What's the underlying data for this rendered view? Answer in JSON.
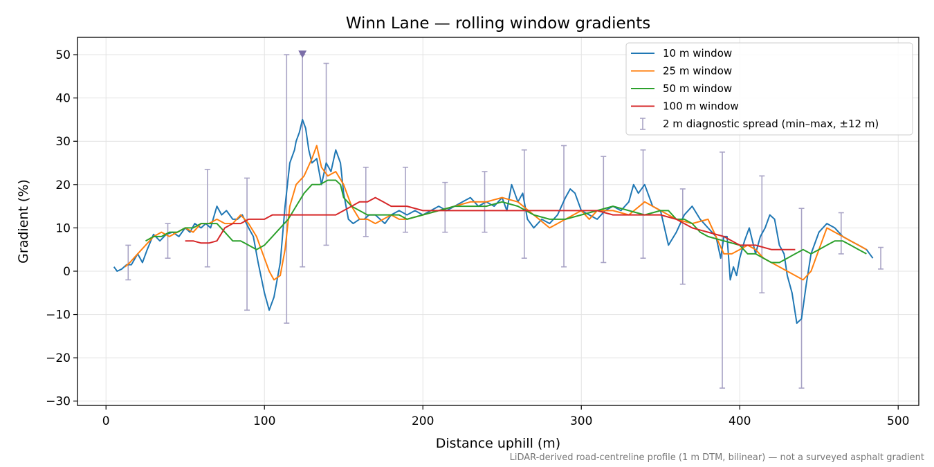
{
  "chart_data": {
    "type": "line",
    "title": "Winn Lane — rolling window gradients",
    "xlabel": "Distance uphill (m)",
    "ylabel": "Gradient (%)",
    "xlim": [
      -18,
      513
    ],
    "ylim": [
      -31,
      54
    ],
    "xticks": [
      0,
      100,
      200,
      300,
      400,
      500
    ],
    "yticks": [
      -30,
      -20,
      -10,
      0,
      10,
      20,
      30,
      40,
      50
    ],
    "grid": true,
    "legend_position": "top-right",
    "footnote": "LiDAR-derived road-centreline profile (1 m DTM, bilinear) — not a surveyed asphalt gradient",
    "series": [
      {
        "name": "10 m window",
        "color": "#1f77b4",
        "x": [
          5,
          7,
          10,
          13,
          16,
          20,
          23,
          26,
          30,
          34,
          38,
          42,
          46,
          50,
          53,
          56,
          60,
          63,
          66,
          70,
          73,
          76,
          80,
          83,
          86,
          90,
          93,
          96,
          100,
          103,
          106,
          110,
          113,
          116,
          119,
          120,
          122,
          124,
          126,
          128,
          130,
          133,
          136,
          139,
          142,
          145,
          148,
          150,
          153,
          156,
          160,
          163,
          166,
          170,
          173,
          176,
          180,
          185,
          190,
          195,
          200,
          205,
          210,
          215,
          220,
          225,
          230,
          235,
          240,
          245,
          250,
          253,
          256,
          260,
          263,
          266,
          270,
          275,
          280,
          285,
          290,
          293,
          296,
          300,
          305,
          310,
          315,
          320,
          325,
          330,
          333,
          336,
          340,
          345,
          350,
          355,
          360,
          365,
          370,
          375,
          380,
          385,
          388,
          390,
          392,
          394,
          396,
          398,
          400,
          403,
          406,
          410,
          413,
          416,
          419,
          422,
          425,
          428,
          430,
          433,
          436,
          439,
          442,
          445,
          450,
          455,
          460,
          465,
          470,
          475,
          480,
          484
        ],
        "y": [
          1,
          0,
          0.5,
          1.5,
          1.5,
          4,
          2,
          5,
          8.5,
          7,
          8.5,
          9,
          8,
          10,
          9,
          11,
          10,
          11,
          10,
          15,
          13,
          14,
          12,
          12,
          13,
          10,
          8,
          2,
          -5,
          -9,
          -6,
          2,
          15,
          25,
          28,
          30,
          32,
          35,
          33,
          28,
          25,
          26,
          20,
          25,
          23,
          28,
          25,
          18,
          12,
          11,
          12,
          12,
          13,
          13,
          12,
          11,
          13,
          14,
          13,
          14,
          13,
          14,
          15,
          14,
          15,
          16,
          17,
          15,
          16,
          15,
          17,
          14,
          20,
          16,
          18,
          12,
          10,
          12,
          11,
          13,
          17,
          19,
          18,
          14,
          13,
          12,
          14,
          15,
          14,
          16,
          20,
          18,
          20,
          15,
          14,
          6,
          9,
          13,
          15,
          12,
          10,
          8,
          3,
          8,
          8,
          -2,
          1,
          -1,
          3,
          7,
          10,
          4,
          8,
          10,
          13,
          12,
          6,
          4,
          -1,
          -5,
          -12,
          -11,
          -3,
          4,
          9,
          11,
          10,
          8,
          7,
          6,
          5,
          3
        ]
      },
      {
        "name": "25 m window",
        "color": "#ff7f0e",
        "x": [
          12,
          15,
          20,
          25,
          30,
          35,
          40,
          45,
          50,
          55,
          60,
          65,
          70,
          75,
          80,
          85,
          90,
          95,
          100,
          103,
          106,
          110,
          113,
          116,
          120,
          125,
          130,
          133,
          136,
          140,
          145,
          150,
          155,
          160,
          165,
          170,
          175,
          180,
          185,
          190,
          200,
          210,
          220,
          230,
          240,
          250,
          260,
          270,
          280,
          290,
          300,
          305,
          310,
          320,
          330,
          340,
          350,
          360,
          370,
          380,
          385,
          390,
          395,
          400,
          405,
          410,
          415,
          420,
          425,
          430,
          435,
          440,
          445,
          450,
          455,
          460,
          465,
          470,
          475,
          480
        ],
        "y": [
          1,
          2,
          4,
          6,
          8,
          9,
          8,
          9,
          10,
          9,
          11,
          11,
          12,
          11,
          11,
          13,
          11,
          8,
          3,
          0,
          -2,
          -1,
          5,
          15,
          20,
          22,
          26,
          29,
          24,
          22,
          23,
          20,
          15,
          12,
          12,
          11,
          12,
          13,
          12,
          12,
          13,
          14,
          15,
          16,
          16,
          17,
          16,
          13,
          10,
          12,
          14,
          12,
          14,
          14,
          13,
          16,
          14,
          12,
          11,
          12,
          8,
          4,
          4,
          5,
          6,
          5,
          3,
          2,
          1,
          0,
          -1,
          -2,
          0,
          5,
          10,
          9,
          8,
          7,
          6,
          5
        ]
      },
      {
        "name": "50 m window",
        "color": "#2ca02c",
        "x": [
          25,
          30,
          35,
          40,
          45,
          50,
          55,
          60,
          65,
          70,
          75,
          80,
          85,
          90,
          95,
          100,
          105,
          110,
          115,
          120,
          125,
          130,
          135,
          140,
          145,
          148,
          150,
          155,
          160,
          165,
          170,
          175,
          180,
          185,
          190,
          200,
          210,
          220,
          230,
          240,
          250,
          260,
          270,
          280,
          290,
          300,
          310,
          320,
          330,
          340,
          350,
          355,
          360,
          365,
          370,
          375,
          380,
          390,
          400,
          405,
          410,
          415,
          420,
          425,
          430,
          435,
          440,
          445,
          450,
          455,
          460,
          465,
          470,
          475,
          480
        ],
        "y": [
          7,
          8,
          8,
          9,
          9,
          10,
          10,
          11,
          11,
          11,
          9,
          7,
          7,
          6,
          5,
          6,
          8,
          10,
          12,
          15,
          18,
          20,
          20,
          21,
          21,
          20,
          17,
          15,
          14,
          13,
          13,
          13,
          13,
          13,
          12,
          13,
          14,
          15,
          15,
          15,
          16,
          15,
          13,
          12,
          12,
          13,
          14,
          15,
          14,
          13,
          14,
          14,
          12,
          12,
          11,
          9,
          8,
          7,
          6,
          4,
          4,
          3,
          2,
          2,
          3,
          4,
          5,
          4,
          5,
          6,
          7,
          7,
          6,
          5,
          4
        ]
      },
      {
        "name": "100 m window",
        "color": "#d62728",
        "x": [
          50,
          55,
          60,
          65,
          70,
          75,
          80,
          85,
          90,
          95,
          100,
          105,
          110,
          115,
          120,
          125,
          130,
          135,
          140,
          145,
          150,
          155,
          160,
          165,
          170,
          175,
          180,
          190,
          200,
          210,
          220,
          230,
          240,
          250,
          260,
          270,
          280,
          290,
          300,
          310,
          320,
          330,
          340,
          350,
          360,
          370,
          380,
          390,
          400,
          410,
          420,
          430,
          435
        ],
        "y": [
          7,
          7,
          6.5,
          6.5,
          7,
          10,
          11,
          11,
          12,
          12,
          12,
          13,
          13,
          13,
          13,
          13,
          13,
          13,
          13,
          13,
          14,
          15,
          16,
          16,
          17,
          16,
          15,
          15,
          14,
          14,
          14,
          14,
          14,
          14,
          14,
          14,
          14,
          14,
          14,
          14,
          13,
          13,
          13,
          13,
          12,
          10,
          9,
          8,
          6,
          6,
          5,
          5,
          5
        ]
      }
    ],
    "error_bars": {
      "name": "2 m diagnostic spread (min–max, ±12 m)",
      "color": "#a8a3c5",
      "x": [
        14,
        39,
        64,
        89,
        114,
        124,
        139,
        164,
        189,
        214,
        239,
        264,
        289,
        314,
        339,
        364,
        389,
        414,
        439,
        464,
        489
      ],
      "low": [
        -2,
        3,
        1,
        -9,
        -12,
        1,
        6,
        8,
        9,
        9,
        9,
        3,
        1,
        2,
        3,
        -3,
        -27,
        -5,
        -27,
        4,
        0.5
      ],
      "high": [
        6,
        11,
        23.5,
        21.5,
        50,
        50,
        48,
        24,
        24,
        20.5,
        23,
        28,
        29,
        26.5,
        28,
        19,
        27.5,
        22,
        14.5,
        13.5,
        5.5
      ],
      "clipped_marker": {
        "x": 124,
        "y": 50
      }
    }
  }
}
